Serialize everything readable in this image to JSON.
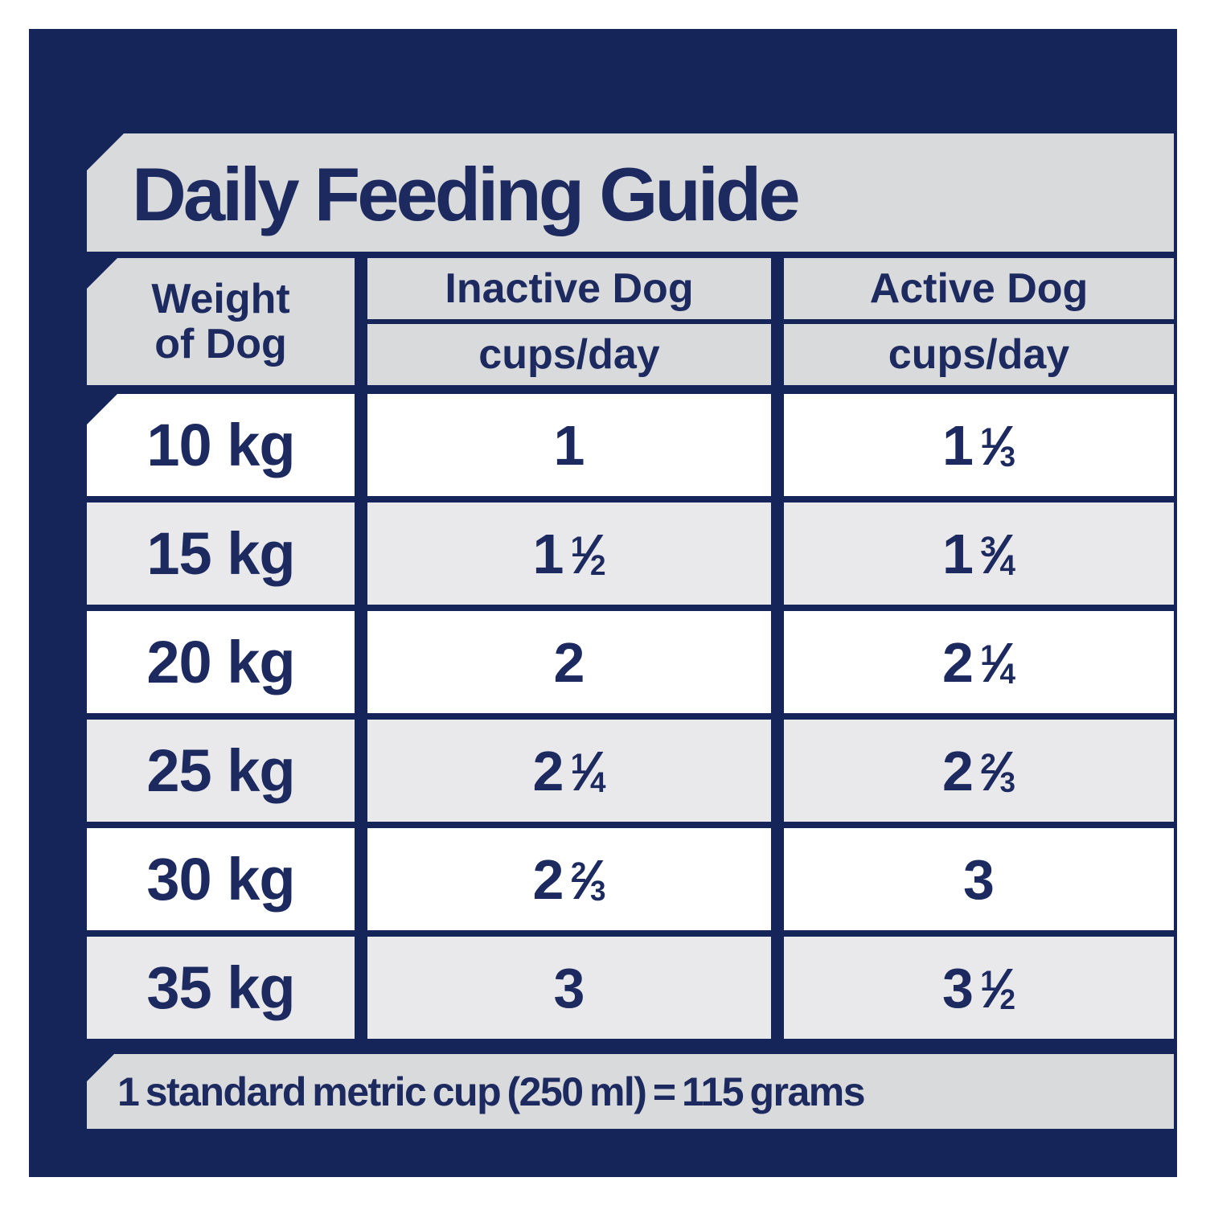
{
  "colors": {
    "navy_bg": "#152459",
    "text_ink": "#1c2a60",
    "banner_gray": "#d9dadc",
    "row_gray": "#e9e9ec",
    "row_white": "#ffffff",
    "page_bg": "#ffffff"
  },
  "chart_data": {
    "type": "table",
    "title": "Daily Feeding Guide",
    "header": {
      "weight": {
        "lines": [
          "Weight",
          "of Dog"
        ]
      },
      "inactive": {
        "label": "Inactive Dog",
        "unit": "cups/day"
      },
      "active": {
        "label": "Active Dog",
        "unit": "cups/day"
      }
    },
    "rows": [
      {
        "weight": "10 kg",
        "inactive": "1",
        "active": "1 1/3"
      },
      {
        "weight": "15 kg",
        "inactive": "1 1/2",
        "active": "1 3/4"
      },
      {
        "weight": "20 kg",
        "inactive": "2",
        "active": "2 1/4"
      },
      {
        "weight": "25 kg",
        "inactive": "2 1/4",
        "active": "2 2/3"
      },
      {
        "weight": "30 kg",
        "inactive": "2 2/3",
        "active": "3"
      },
      {
        "weight": "35 kg",
        "inactive": "3",
        "active": "3 1/2"
      }
    ],
    "footnote": "1 standard metric cup (250 ml) = 115 grams"
  }
}
